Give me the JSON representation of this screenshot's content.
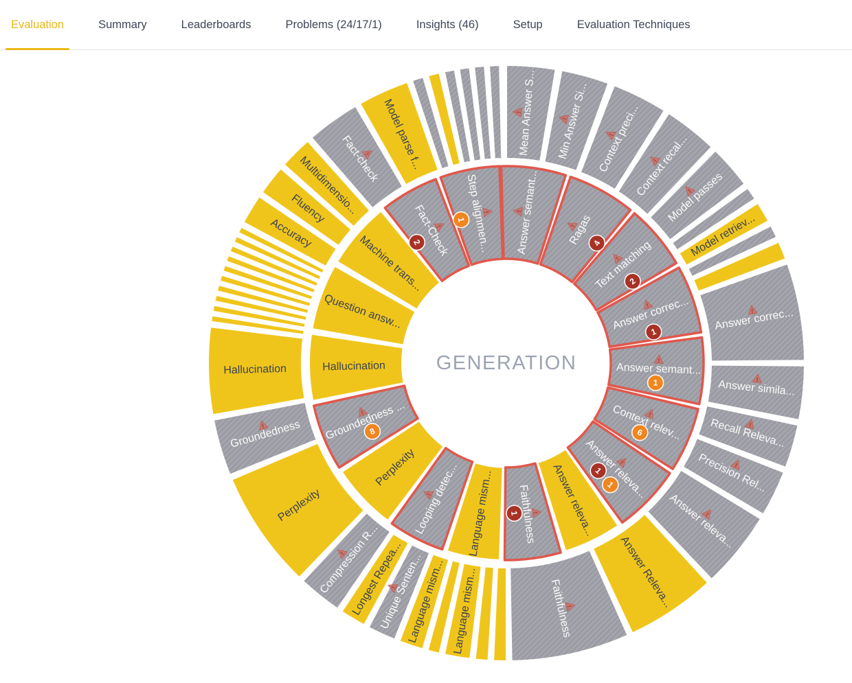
{
  "header": {
    "tabs": [
      {
        "label": "Evaluation",
        "active": true
      },
      {
        "label": "Summary",
        "active": false
      },
      {
        "label": "Leaderboards",
        "active": false
      },
      {
        "label": "Problems (24/17/1)",
        "active": false
      },
      {
        "label": "Insights (46)",
        "active": false
      },
      {
        "label": "Setup",
        "active": false
      },
      {
        "label": "Evaluation Techniques",
        "active": false
      }
    ]
  },
  "chart_data": {
    "type": "sunburst",
    "center_label": "GENERATION",
    "legend": "none",
    "colors": {
      "yellow": "#F0C51B",
      "gray": "#9B9BA3",
      "gray_hatch_line": "#A8A8B0",
      "flag_border": "#E0584C",
      "badge_red": "#A93226",
      "badge_orange": "#F0861F",
      "warning_fill": "#CD7169",
      "warning_stroke": "#C05B50",
      "warning_mark": "#8F2F26",
      "label_on_gray": "#FBFBFB",
      "label_on_yellow": "#3A4350",
      "center_label_color": "#9CA3B2"
    },
    "rings": {
      "inner": [
        {
          "label": "Answer semant...",
          "color": "gray",
          "flagged": true,
          "warning": true,
          "badges": [],
          "start": -1.5,
          "end": 17.5
        },
        {
          "label": "Ragas",
          "color": "gray",
          "flagged": true,
          "warning": true,
          "badges": [
            {
              "value": "4",
              "color": "red"
            }
          ],
          "start": 19,
          "end": 39,
          "badge_angle": 37
        },
        {
          "label": "Text matching",
          "color": "gray",
          "flagged": true,
          "warning": true,
          "badges": [
            {
              "value": "2",
              "color": "red"
            }
          ],
          "start": 40.5,
          "end": 59.5,
          "badge_angle": 57
        },
        {
          "label": "Answer correc...",
          "color": "gray",
          "flagged": true,
          "warning": true,
          "badges": [
            {
              "value": "1",
              "color": "red"
            }
          ],
          "start": 61,
          "end": 81,
          "badge_angle": 78
        },
        {
          "label": "Answer semant...",
          "color": "gray",
          "flagged": true,
          "warning": true,
          "badges": [
            {
              "value": "1",
              "color": "orange"
            }
          ],
          "start": 82.5,
          "end": 102,
          "badge_angle": 97.5
        },
        {
          "label": "Context relev...",
          "color": "gray",
          "flagged": true,
          "warning": true,
          "badges": [
            {
              "value": "6",
              "color": "orange"
            }
          ],
          "start": 103.5,
          "end": 122.5,
          "badge_angle": 117.5
        },
        {
          "label": "Answer releva...",
          "color": "gray",
          "flagged": true,
          "warning": true,
          "badges": [
            {
              "value": "1",
              "color": "red",
              "r": 206
            },
            {
              "value": "1",
              "color": "orange",
              "r": 233
            }
          ],
          "start": 124,
          "end": 144,
          "badge_angle": 139.5
        },
        {
          "label": "Answer releva...",
          "color": "yellow",
          "flagged": false,
          "warning": false,
          "badges": [],
          "start": 145.5,
          "end": 162.5
        },
        {
          "label": "Faithfulness",
          "color": "gray",
          "flagged": true,
          "warning": true,
          "badges": [
            {
              "value": "1",
              "color": "red"
            }
          ],
          "start": 164,
          "end": 180.5,
          "badge_angle": 177
        },
        {
          "label": "Language mism...",
          "color": "yellow",
          "flagged": false,
          "warning": false,
          "badges": [],
          "start": 182,
          "end": 197.5
        },
        {
          "label": "Looping detec...",
          "color": "gray",
          "flagged": true,
          "warning": true,
          "badges": [],
          "start": 199,
          "end": 215.5
        },
        {
          "label": "Perplexity",
          "color": "yellow",
          "flagged": false,
          "warning": false,
          "badges": [],
          "start": 217,
          "end": 236.5
        },
        {
          "label": "Groundedness ...",
          "color": "gray",
          "flagged": true,
          "warning": true,
          "badges": [
            {
              "value": "8",
              "color": "orange"
            }
          ],
          "start": 238,
          "end": 257.5,
          "badge_angle": 243
        },
        {
          "label": "Hallucination",
          "color": "yellow",
          "flagged": false,
          "warning": false,
          "badges": [],
          "start": 259,
          "end": 278.5
        },
        {
          "label": "Question answ...",
          "color": "yellow",
          "flagged": false,
          "warning": false,
          "badges": [],
          "start": 280,
          "end": 299.5
        },
        {
          "label": "Machine trans...",
          "color": "yellow",
          "flagged": false,
          "warning": false,
          "badges": [],
          "start": 301,
          "end": 320.5
        },
        {
          "label": "Fact-Check",
          "color": "gray",
          "flagged": true,
          "warning": true,
          "badges": [
            {
              "value": "2",
              "color": "red"
            }
          ],
          "start": 322,
          "end": 339,
          "badge_angle": 323.5
        },
        {
          "label": "Step alignmen...",
          "color": "gray",
          "flagged": true,
          "warning": true,
          "badges": [
            {
              "value": "1",
              "color": "orange"
            }
          ],
          "start": 340.5,
          "end": 358,
          "badge_angle": 342.5
        }
      ],
      "outer": [
        {
          "label": "Mean Answer S...",
          "color": "gray",
          "warning": true,
          "start": 0,
          "end": 9.5
        },
        {
          "label": "Min Answer Si...",
          "color": "gray",
          "warning": true,
          "start": 10.7,
          "end": 20
        },
        {
          "label": "Context preci...",
          "color": "gray",
          "warning": true,
          "start": 21.2,
          "end": 32
        },
        {
          "label": "Context recal...",
          "color": "gray",
          "warning": true,
          "start": 33,
          "end": 43.5
        },
        {
          "label": "Model passes",
          "color": "gray",
          "warning": true,
          "start": 44.5,
          "end": 53
        },
        {
          "label": "",
          "color": "gray",
          "warning": false,
          "start": 54,
          "end": 56.5
        },
        {
          "label": "Model retriev...",
          "color": "yellow",
          "warning": false,
          "start": 57.5,
          "end": 61.5
        },
        {
          "label": "",
          "color": "gray",
          "warning": false,
          "start": 62.5,
          "end": 65
        },
        {
          "label": "",
          "color": "yellow",
          "warning": false,
          "start": 66,
          "end": 69.5
        },
        {
          "label": "Answer correc...",
          "color": "gray",
          "warning": true,
          "start": 70.5,
          "end": 89.5
        },
        {
          "label": "Answer simila...",
          "color": "gray",
          "warning": true,
          "start": 90.5,
          "end": 101
        },
        {
          "label": "Recall Releva...",
          "color": "gray",
          "warning": true,
          "start": 102,
          "end": 110.5
        },
        {
          "label": "Precision Rel...",
          "color": "gray",
          "warning": true,
          "start": 111.5,
          "end": 120.5
        },
        {
          "label": "Answer releva...",
          "color": "gray",
          "warning": true,
          "start": 121.5,
          "end": 136.5
        },
        {
          "label": "Answer Releva...",
          "color": "yellow",
          "warning": false,
          "start": 137.5,
          "end": 155
        },
        {
          "label": "Faithfulness",
          "color": "gray",
          "warning": true,
          "start": 156,
          "end": 179
        },
        {
          "label": "",
          "color": "yellow",
          "warning": false,
          "start": 180,
          "end": 182.5
        },
        {
          "label": "",
          "color": "yellow",
          "warning": false,
          "start": 183.5,
          "end": 186
        },
        {
          "label": "Language mism...",
          "color": "yellow",
          "warning": false,
          "start": 187,
          "end": 192
        },
        {
          "label": "",
          "color": "yellow",
          "warning": false,
          "start": 193,
          "end": 195.3
        },
        {
          "label": "Language mism...",
          "color": "yellow",
          "warning": false,
          "start": 196.3,
          "end": 201
        },
        {
          "label": "Unique Senten...",
          "color": "gray",
          "warning": true,
          "start": 202,
          "end": 207.5
        },
        {
          "label": "Longest Repea...",
          "color": "yellow",
          "warning": false,
          "start": 208.5,
          "end": 213.5
        },
        {
          "label": "Compression R...",
          "color": "gray",
          "warning": true,
          "start": 214.5,
          "end": 223
        },
        {
          "label": "Perplexity",
          "color": "yellow",
          "warning": false,
          "start": 224,
          "end": 247
        },
        {
          "label": "Groundedness",
          "color": "gray",
          "warning": true,
          "start": 248,
          "end": 259
        },
        {
          "label": "Hallucination",
          "color": "yellow",
          "warning": false,
          "start": 260,
          "end": 277
        },
        {
          "label": "",
          "color": "yellow",
          "warning": false,
          "start": 278,
          "end": 279.2
        },
        {
          "label": "",
          "color": "yellow",
          "warning": false,
          "start": 280,
          "end": 281.2
        },
        {
          "label": "",
          "color": "yellow",
          "warning": false,
          "start": 282,
          "end": 283.2
        },
        {
          "label": "",
          "color": "yellow",
          "warning": false,
          "start": 284,
          "end": 285.2
        },
        {
          "label": "",
          "color": "yellow",
          "warning": false,
          "start": 286,
          "end": 287.2
        },
        {
          "label": "",
          "color": "yellow",
          "warning": false,
          "start": 288,
          "end": 289.2
        },
        {
          "label": "",
          "color": "yellow",
          "warning": false,
          "start": 290,
          "end": 291.2
        },
        {
          "label": "",
          "color": "yellow",
          "warning": false,
          "start": 292,
          "end": 293.2
        },
        {
          "label": "",
          "color": "yellow",
          "warning": false,
          "start": 294,
          "end": 295.2
        },
        {
          "label": "",
          "color": "yellow",
          "warning": false,
          "start": 296,
          "end": 297.2
        },
        {
          "label": "Accuracy",
          "color": "yellow",
          "warning": false,
          "start": 298.2,
          "end": 304
        },
        {
          "label": "Fluency",
          "color": "yellow",
          "warning": false,
          "start": 305,
          "end": 310.8
        },
        {
          "label": "Multidimensio...",
          "color": "yellow",
          "warning": false,
          "start": 311.8,
          "end": 318.2
        },
        {
          "label": "Fact-check",
          "color": "gray",
          "warning": true,
          "start": 319.2,
          "end": 329.6
        },
        {
          "label": "Model parse f...",
          "color": "yellow",
          "warning": false,
          "start": 330.6,
          "end": 340.6
        },
        {
          "label": "",
          "color": "gray",
          "warning": false,
          "start": 341.6,
          "end": 343.8
        },
        {
          "label": "",
          "color": "yellow",
          "warning": false,
          "start": 344.8,
          "end": 347
        },
        {
          "label": "",
          "color": "gray",
          "warning": false,
          "start": 348,
          "end": 350
        },
        {
          "label": "",
          "color": "gray",
          "warning": false,
          "start": 350.9,
          "end": 352.9
        },
        {
          "label": "",
          "color": "gray",
          "warning": false,
          "start": 353.8,
          "end": 355.8
        },
        {
          "label": "",
          "color": "gray",
          "warning": false,
          "start": 356.7,
          "end": 358.7
        }
      ]
    }
  }
}
